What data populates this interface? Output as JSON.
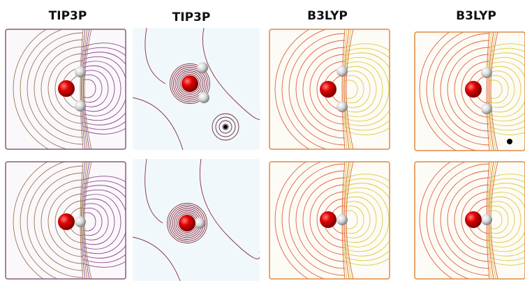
{
  "columns": [
    {
      "title": "TIP3P"
    },
    {
      "title": "TIP3P"
    },
    {
      "title": "B3LYP"
    },
    {
      "title": "B3LYP"
    }
  ]
}
